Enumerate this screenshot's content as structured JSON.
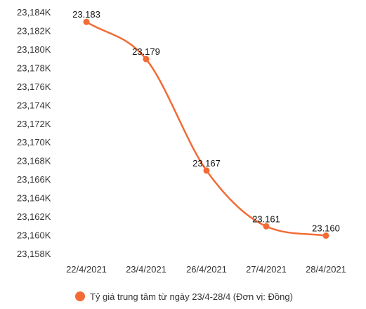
{
  "chart_data": {
    "type": "line",
    "smooth": true,
    "x": [
      "22/4/2021",
      "23/4/2021",
      "26/4/2021",
      "27/4/2021",
      "28/4/2021"
    ],
    "series": [
      {
        "name": "Tỷ giá trung tâm từ ngày 23/4-28/4 (Đơn vị: Đồng)",
        "values": [
          23183,
          23179,
          23167,
          23161,
          23160
        ],
        "data_labels": [
          "23.183",
          "23.179",
          "23.167",
          "23.161",
          "23.160"
        ],
        "color": "#f26b35"
      }
    ],
    "y_ticks": [
      "23,158K",
      "23,160K",
      "23,162K",
      "23,164K",
      "23,166K",
      "23,168K",
      "23,170K",
      "23,172K",
      "23,174K",
      "23,176K",
      "23,178K",
      "23,180K",
      "23,182K",
      "23,184K"
    ],
    "ylim": [
      23158,
      23184
    ],
    "grid": false,
    "legend": "bottom",
    "xlabel": "",
    "ylabel": "",
    "title": ""
  }
}
